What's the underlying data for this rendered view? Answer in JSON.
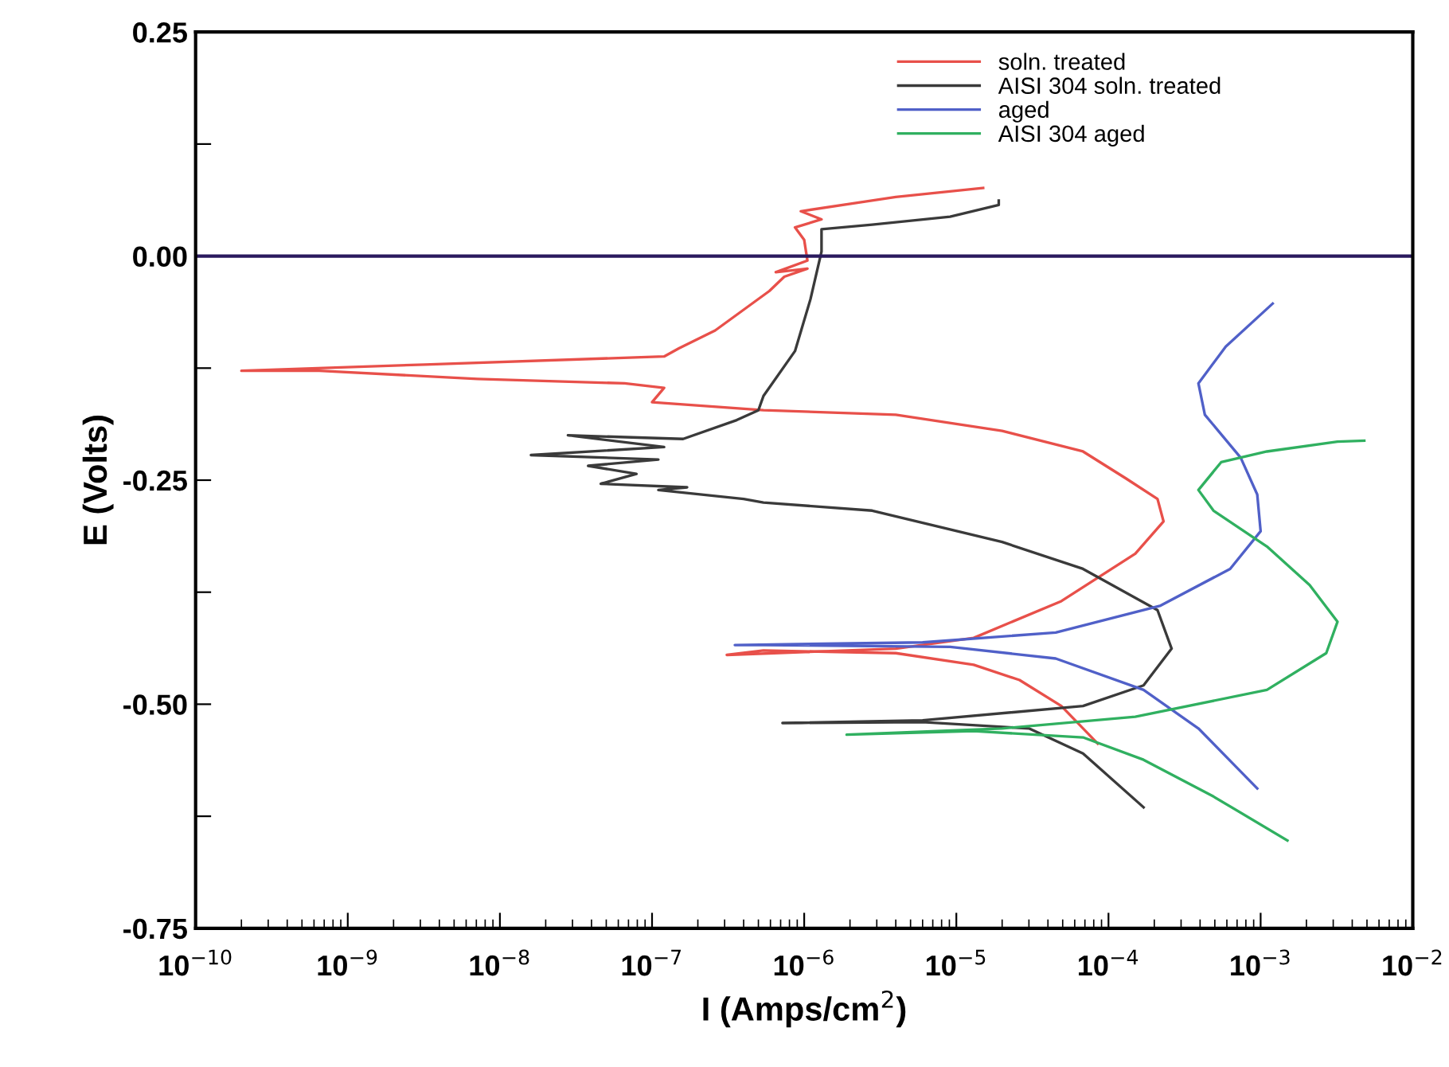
{
  "chart_data": {
    "type": "line",
    "xlabel": "I (Amps/cm$^{2}$)",
    "ylabel": "E (Volts)",
    "log": "x",
    "xlim": [
      1e-10,
      0.01
    ],
    "xticks": [
      {
        "value": 1e-10,
        "label": "10$^{−10}$"
      },
      {
        "value": 1e-09,
        "label": "10$^{−9}$"
      },
      {
        "value": 1e-08,
        "label": "10$^{−8}$"
      },
      {
        "value": 1e-07,
        "label": "10$^{−7}$"
      },
      {
        "value": 1e-06,
        "label": "10$^{−6}$"
      },
      {
        "value": 1e-05,
        "label": "10$^{−5}$"
      },
      {
        "value": 0.0001,
        "label": "10$^{−4}$"
      },
      {
        "value": 0.001,
        "label": "10$^{−3}$"
      },
      {
        "value": 0.01,
        "label": "10$^{−2}$"
      }
    ],
    "ylim": [
      -0.75,
      0.25
    ],
    "yticks": [
      {
        "value": -0.75,
        "label": "-0.75"
      },
      {
        "value": -0.625,
        "label": null
      },
      {
        "value": -0.5,
        "label": "-0.50"
      },
      {
        "value": -0.375,
        "label": null
      },
      {
        "value": -0.25,
        "label": "-0.25"
      },
      {
        "value": -0.125,
        "label": null
      },
      {
        "value": 0,
        "label": "0.00"
      },
      {
        "value": 0.125,
        "label": null
      },
      {
        "value": 0.25,
        "label": "0.25"
      }
    ],
    "grid": false,
    "legend": "top right",
    "marker": "none",
    "line_style": "solid",
    "ref_lines": [
      {
        "axis": "y",
        "value": 0,
        "color": "#2a1a5e"
      }
    ],
    "series": [
      {
        "name": "soln. treated",
        "color": "#e8504a",
        "x": [
          8.5e-05,
          4.9e-05,
          2.6e-05,
          1.3e-05,
          4e-06,
          5.4e-07,
          3.1e-07,
          4e-06,
          1.3e-05,
          4.9e-05,
          0.00015,
          0.00023,
          0.00021,
          0.00013,
          6.8e-05,
          2e-05,
          4e-06,
          5.4e-07,
          1e-07,
          1.2e-07,
          6.6e-08,
          7.1e-09,
          6.5e-10,
          2e-10,
          3.2e-09,
          1.2e-07,
          1.5e-07,
          2.6e-07,
          5.9e-07,
          7.4e-07,
          1.05e-06,
          6.5e-07,
          1.05e-06,
          1e-06,
          8.7e-07,
          1.3e-06,
          9.5e-07,
          4e-06,
          1.5e-05
        ],
        "values": [
          -0.544,
          -0.502,
          -0.473,
          -0.456,
          -0.443,
          -0.44,
          -0.445,
          -0.438,
          -0.426,
          -0.385,
          -0.332,
          -0.296,
          -0.271,
          -0.248,
          -0.218,
          -0.195,
          -0.177,
          -0.172,
          -0.163,
          -0.147,
          -0.142,
          -0.137,
          -0.128,
          -0.128,
          -0.121,
          -0.112,
          -0.103,
          -0.083,
          -0.039,
          -0.023,
          -0.014,
          -0.018,
          -0.005,
          0.018,
          0.032,
          0.041,
          0.05,
          0.066,
          0.076
        ]
      },
      {
        "name": "AISI 304 soln. treated",
        "color": "#3a3a3a",
        "x": [
          0.00017,
          6.8e-05,
          3e-05,
          6e-06,
          7.2e-07,
          6e-06,
          6.8e-05,
          0.00017,
          0.00026,
          0.00021,
          6.8e-05,
          2e-05,
          2.8e-06,
          5.4e-07,
          4e-07,
          1.1e-07,
          1.7e-07,
          4.6e-08,
          7.9e-08,
          3.8e-08,
          1.1e-07,
          1.6e-08,
          1.2e-07,
          2.8e-08,
          1.6e-07,
          3.6e-07,
          5e-07,
          5.4e-07,
          8.7e-07,
          1.1e-06,
          1.3e-06,
          1.3e-06,
          2.8e-06,
          9.1e-06,
          1.9e-05,
          1.9e-05
        ],
        "values": [
          -0.615,
          -0.555,
          -0.527,
          -0.52,
          -0.521,
          -0.518,
          -0.502,
          -0.479,
          -0.438,
          -0.395,
          -0.349,
          -0.319,
          -0.284,
          -0.275,
          -0.271,
          -0.261,
          -0.258,
          -0.254,
          -0.243,
          -0.234,
          -0.227,
          -0.222,
          -0.213,
          -0.2,
          -0.204,
          -0.183,
          -0.172,
          -0.156,
          -0.106,
          -0.048,
          0.005,
          0.03,
          0.035,
          0.044,
          0.057,
          0.062
        ]
      },
      {
        "name": "aged",
        "color": "#5060c8",
        "x": [
          0.00095,
          0.00039,
          0.00017,
          4.5e-05,
          9.1e-06,
          5.4e-07,
          3.5e-07,
          6e-06,
          4.5e-05,
          0.00022,
          0.00063,
          0.001,
          0.00095,
          0.00074,
          0.00043,
          0.00039,
          0.00059,
          0.0012
        ],
        "values": [
          -0.594,
          -0.527,
          -0.484,
          -0.449,
          -0.436,
          -0.434,
          -0.434,
          -0.431,
          -0.42,
          -0.39,
          -0.349,
          -0.307,
          -0.266,
          -0.225,
          -0.177,
          -0.142,
          -0.101,
          -0.053
        ]
      },
      {
        "name": "AISI 304 aged",
        "color": "#30b060",
        "x": [
          0.0015,
          0.00049,
          0.00017,
          6.8e-05,
          1.3e-05,
          1.9e-06,
          2e-05,
          0.00015,
          0.0011,
          0.0027,
          0.0032,
          0.0021,
          0.0011,
          0.00049,
          0.00039,
          0.00055,
          0.0011,
          0.0032,
          0.0048
        ],
        "values": [
          -0.652,
          -0.603,
          -0.562,
          -0.537,
          -0.53,
          -0.534,
          -0.527,
          -0.514,
          -0.484,
          -0.443,
          -0.408,
          -0.367,
          -0.324,
          -0.284,
          -0.261,
          -0.23,
          -0.218,
          -0.207,
          -0.206
        ]
      }
    ]
  }
}
